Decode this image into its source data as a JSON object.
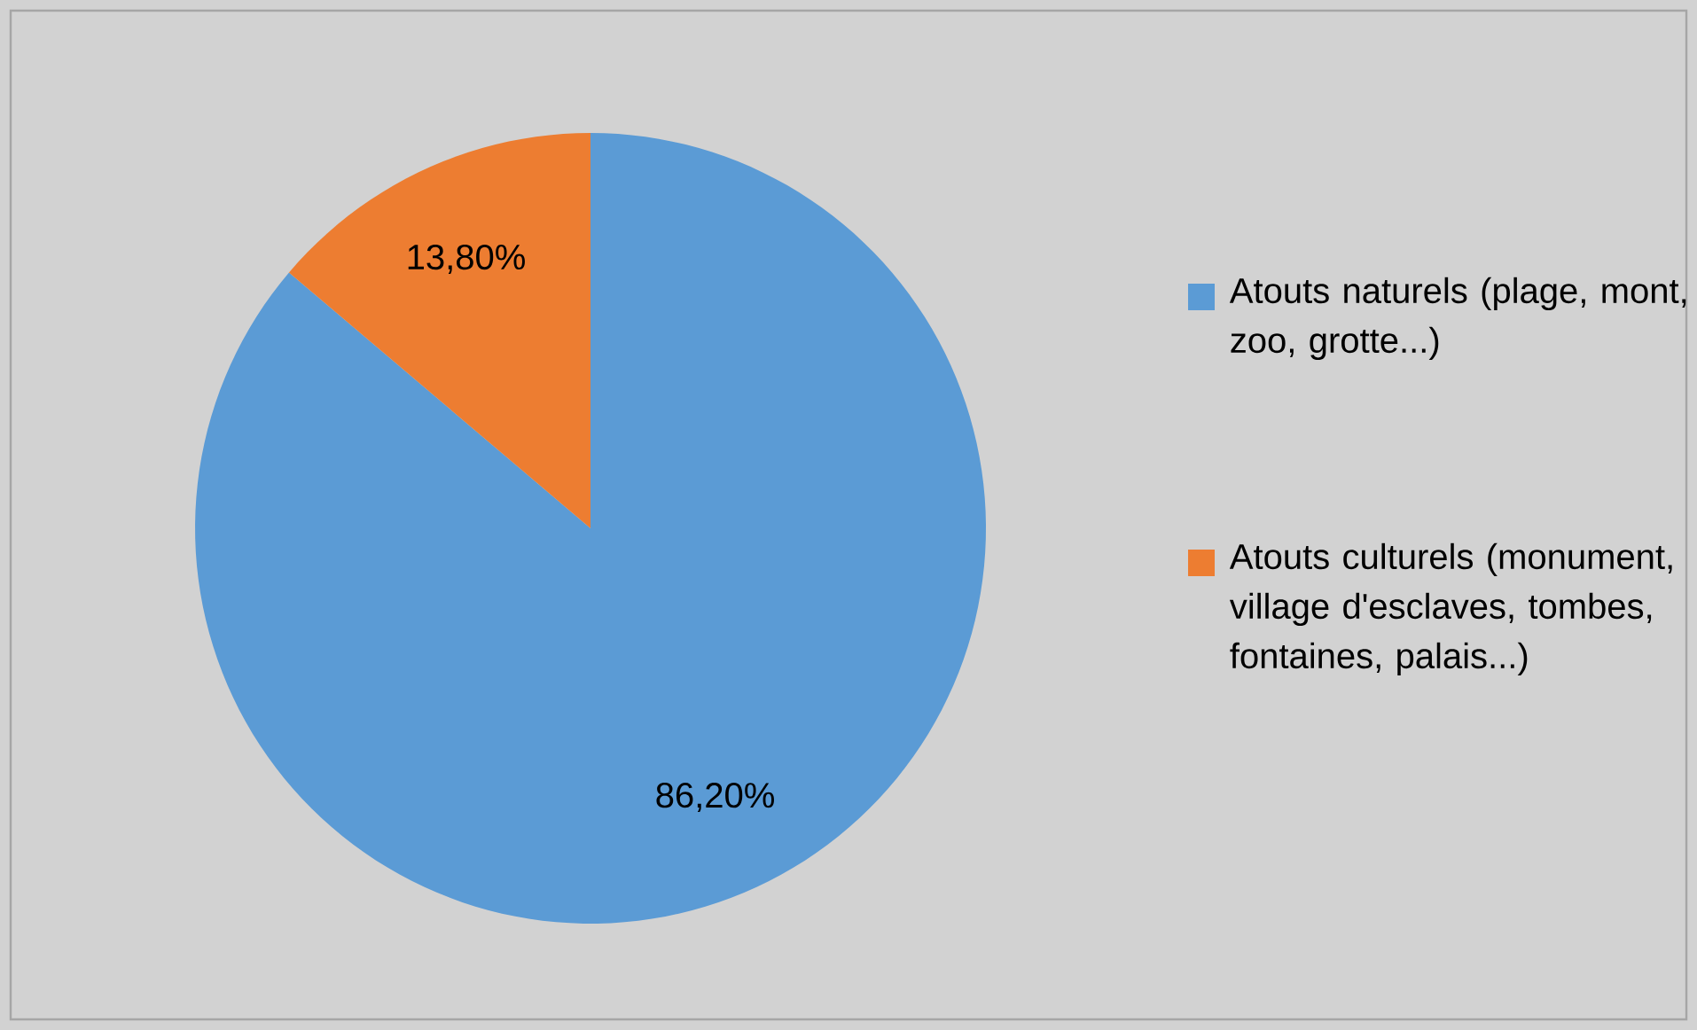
{
  "chart_data": {
    "type": "pie",
    "categories": [
      "Atouts naturels (plage, mont, zoo, grotte...)",
      "Atouts culturels (monument, village d'esclaves, tombes, fontaines, palais...)"
    ],
    "values": [
      86.2,
      13.8
    ],
    "colors": [
      "#5b9bd5",
      "#ed7d31"
    ],
    "value_labels": [
      "86,20%",
      "13,80%"
    ],
    "legend": "right"
  }
}
